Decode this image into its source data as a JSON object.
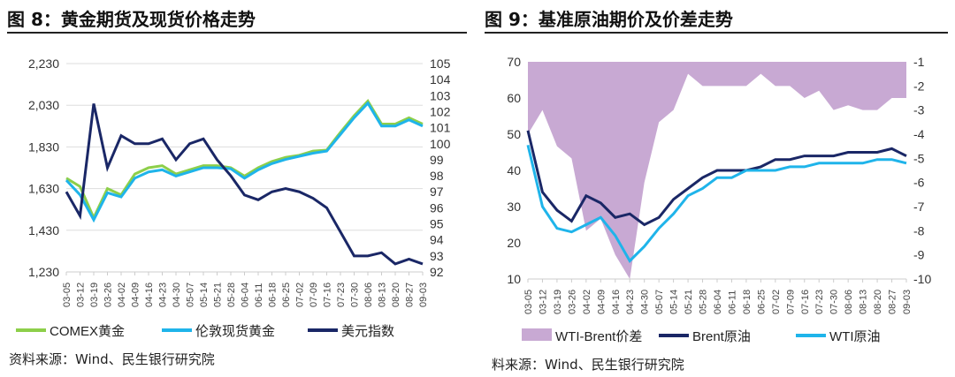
{
  "titles": [
    "图 8：黄金期货及现货价格走势",
    "图 9：基准原油期价及价差走势"
  ],
  "sources": [
    "资料来源：Wind、民生银行研究院",
    "料来源：Wind、民生银行研究院"
  ],
  "chart_data": [
    {
      "type": "line",
      "x": [
        "03-05",
        "03-12",
        "03-19",
        "03-26",
        "04-02",
        "04-09",
        "04-16",
        "04-23",
        "04-30",
        "05-07",
        "05-14",
        "05-21",
        "05-28",
        "06-04",
        "06-11",
        "06-18",
        "06-25",
        "07-02",
        "07-09",
        "07-16",
        "07-23",
        "07-30",
        "08-06",
        "08-13",
        "08-20",
        "08-27",
        "09-03"
      ],
      "y_left": {
        "ticks": [
          1230,
          1430,
          1630,
          1830,
          2030,
          2230
        ],
        "labels": [
          "1,230",
          "1,430",
          "1,630",
          "1,830",
          "2,030",
          "2,230"
        ],
        "range": [
          1230,
          2230
        ]
      },
      "y_right": {
        "ticks": [
          92,
          93,
          94,
          95,
          96,
          97,
          98,
          99,
          100,
          101,
          102,
          103,
          104,
          105
        ],
        "range": [
          92,
          105
        ]
      },
      "grid": true,
      "legend": "bottom",
      "series": [
        {
          "name": "COMEX黄金",
          "axis": "left",
          "color": "#8dcf4a",
          "values": [
            1680,
            1640,
            1490,
            1630,
            1600,
            1700,
            1730,
            1740,
            1700,
            1720,
            1740,
            1740,
            1730,
            1690,
            1730,
            1760,
            1780,
            1790,
            1810,
            1815,
            1900,
            1980,
            2050,
            1940,
            1940,
            1970,
            1940
          ]
        },
        {
          "name": "伦敦现货黄金",
          "axis": "left",
          "color": "#1fb4ea",
          "values": [
            1670,
            1600,
            1480,
            1610,
            1590,
            1680,
            1710,
            1720,
            1690,
            1710,
            1730,
            1730,
            1725,
            1680,
            1720,
            1750,
            1770,
            1785,
            1800,
            1810,
            1890,
            1970,
            2040,
            1930,
            1930,
            1960,
            1930
          ]
        },
        {
          "name": "美元指数",
          "axis": "right",
          "color": "#1a2766",
          "values": [
            97,
            95.5,
            102.5,
            98.5,
            100.5,
            100,
            100,
            100.3,
            99,
            100,
            100.3,
            99,
            98,
            96.8,
            96.5,
            97,
            97.2,
            97,
            96.6,
            96,
            94.5,
            93,
            93,
            93.2,
            92.5,
            92.8,
            92.5
          ]
        }
      ]
    },
    {
      "type": "line",
      "x": [
        "03-05",
        "03-12",
        "03-19",
        "03-26",
        "04-02",
        "04-09",
        "04-16",
        "04-23",
        "04-30",
        "05-07",
        "05-14",
        "05-21",
        "05-28",
        "06-04",
        "06-11",
        "06-18",
        "06-25",
        "07-02",
        "07-09",
        "07-16",
        "07-23",
        "07-30",
        "08-06",
        "08-13",
        "08-20",
        "08-27",
        "09-03"
      ],
      "y_left": {
        "ticks": [
          10,
          20,
          30,
          40,
          50,
          60,
          70
        ],
        "range": [
          10,
          70
        ]
      },
      "y_right": {
        "ticks": [
          -10,
          -9,
          -8,
          -7,
          -6,
          -5,
          -4,
          -3,
          -2,
          -1
        ],
        "range": [
          -10,
          -1
        ]
      },
      "grid": false,
      "legend": "bottom",
      "series": [
        {
          "name": "WTI-Brent价差",
          "axis": "right",
          "type": "area",
          "color": "#c8a9d3",
          "values": [
            -4,
            -3,
            -4.5,
            -5,
            -8,
            -7.5,
            -9,
            -10,
            -6,
            -3.5,
            -3,
            -1.5,
            -2,
            -2,
            -2,
            -2,
            -1.5,
            -2,
            -2,
            -2.5,
            -2.2,
            -3,
            -2.8,
            -3,
            -3,
            -2.5,
            -2.5
          ]
        },
        {
          "name": "Brent原油",
          "axis": "left",
          "color": "#1a2766",
          "values": [
            51,
            34,
            29,
            26,
            33,
            31,
            27,
            28,
            25,
            27,
            32,
            35,
            38,
            40,
            40,
            40,
            41,
            43,
            43,
            44,
            44,
            44,
            45,
            45,
            45,
            46,
            44
          ]
        },
        {
          "name": "WTI原油",
          "axis": "left",
          "color": "#1fb4ea",
          "values": [
            47,
            30,
            24,
            23,
            25,
            27,
            22,
            15,
            19,
            24,
            28,
            33,
            35,
            38,
            38,
            40,
            40,
            40,
            41,
            41,
            42,
            42,
            42,
            42,
            43,
            43,
            42
          ]
        }
      ]
    }
  ]
}
